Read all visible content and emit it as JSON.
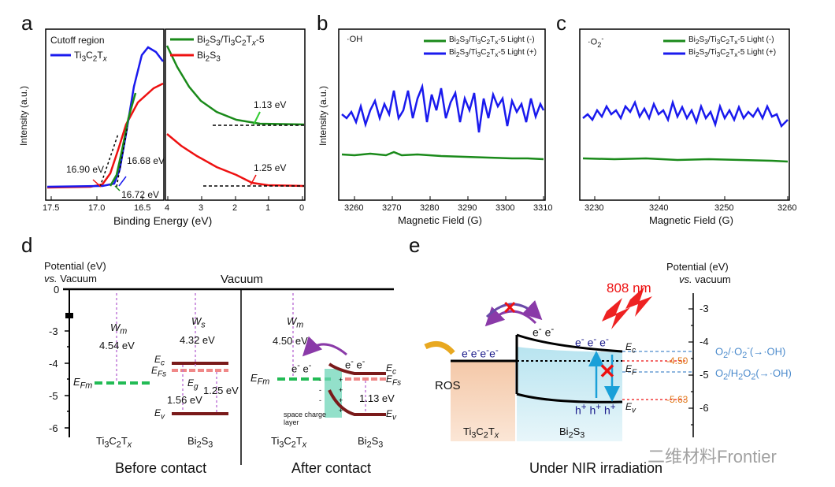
{
  "panel_letters": {
    "a": "a",
    "b": "b",
    "c": "c",
    "d": "d",
    "e": "e"
  },
  "panel_a": {
    "left": {
      "title": "Cutoff region",
      "legend": [
        "Ti3C2Tx"
      ],
      "annotations": [
        "16.90 eV",
        "16.68 eV",
        "16.72 eV"
      ],
      "x_ticks": [
        "17.5",
        "17.0",
        "16.5"
      ]
    },
    "right": {
      "legend": [
        "Bi2S3/Ti3C2Tx-5",
        "Bi2S3"
      ],
      "annotations": [
        "1.13 eV",
        "1.25 eV"
      ],
      "x_ticks": [
        "4",
        "3",
        "2",
        "1",
        "0"
      ]
    },
    "xlabel": "Binding Energy (eV)",
    "ylabel": "Intensity (a.u.)"
  },
  "panel_b": {
    "radical": "·OH",
    "legend": [
      "Bi2S3/Ti3C2Tx-5 Light (-)",
      "Bi2S3/Ti3C2Tx-5 Light (+)"
    ],
    "xlabel": "Magnetic Field (G)",
    "ylabel": "Intensity (a.u.)",
    "x_ticks": [
      "3260",
      "3270",
      "3280",
      "3290",
      "3300",
      "3310"
    ]
  },
  "panel_c": {
    "radical": "·O2-",
    "legend": [
      "Bi2S3/Ti3C2Tx-5 Light (-)",
      "Bi2S3/Ti3C2Tx-5 Light (+)"
    ],
    "xlabel": "Magnetic Field (G)",
    "x_ticks": [
      "3230",
      "3240",
      "3250",
      "3260"
    ]
  },
  "panel_d": {
    "axis_title_1": "Potential (eV)",
    "axis_title_2": "vs. Vacuum",
    "vacuum": "Vacuum",
    "y_ticks": [
      "0",
      "-3",
      "-4",
      "-5",
      "-6"
    ],
    "wm": "Wm",
    "ws": "Ws",
    "before_values": [
      "4.54 eV",
      "4.32 eV",
      "1.56 eV",
      "1.25 eV"
    ],
    "after_values": [
      "4.50 eV",
      "1.13 eV"
    ],
    "labels": [
      "EFm",
      "Ec",
      "EFs",
      "Eg",
      "Ev"
    ],
    "materials": [
      "Ti3C2Tx",
      "Bi2S3"
    ],
    "space_charge": "space charge layer",
    "before_caption": "Before contact",
    "after_caption": "After contact",
    "electron": "e-"
  },
  "panel_e": {
    "axis_title_1": "Potential (eV)",
    "axis_title_2": "vs. vacuum",
    "y_ticks": [
      "-3",
      "-4",
      "-5",
      "-6"
    ],
    "wavelength": "808 nm",
    "ros": "ROS",
    "value_cb": "-4.50",
    "value_vb": "-5.63",
    "couple_1": "O2/·O2-(→·OH)",
    "couple_2": "O2/H2O2(→·OH)",
    "holes": "h+ h+ h+",
    "caption": "Under NIR irradiation",
    "watermark": "二维材料Frontier"
  },
  "colors": {
    "green": "#1a8a1a",
    "blue": "#1a1aee",
    "red": "#ee1111",
    "orange": "#e07a1a",
    "light_blue": "#4a8acc"
  }
}
